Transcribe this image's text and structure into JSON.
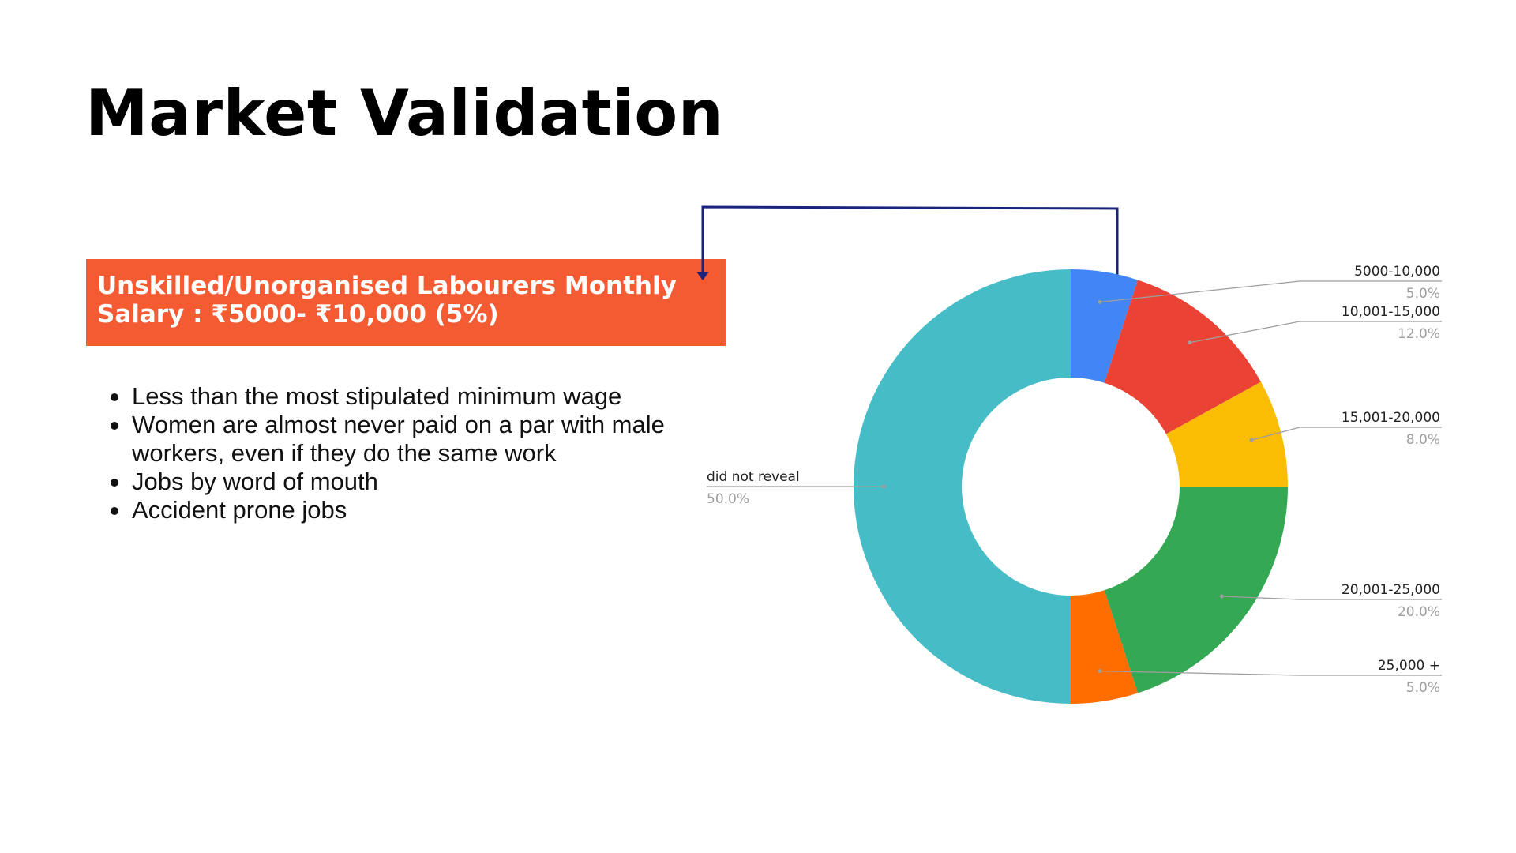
{
  "slide": {
    "title": "Market Validation",
    "highlight_box": {
      "text": "Unskilled/Unorganised Labourers Monthly\nSalary : ₹5000- ₹10,000 (5%)",
      "background": "#F45B32",
      "text_color": "#FFFFFF"
    },
    "bullets": [
      "Less than the most stipulated minimum wage",
      "Women are almost never paid on a par with male workers, even if they do the same work",
      "Jobs by word of mouth",
      "Accident prone jobs"
    ],
    "connector_color": "#1A237E"
  },
  "chart_data": {
    "type": "pie",
    "donut": true,
    "title": "",
    "legend": "none",
    "slices": [
      {
        "label": "5000-10,000",
        "value": 5.0,
        "percent_label": "5.0%",
        "color": "#4285F4"
      },
      {
        "label": "10,001-15,000",
        "value": 12.0,
        "percent_label": "12.0%",
        "color": "#EA4335"
      },
      {
        "label": "15,001-20,000",
        "value": 8.0,
        "percent_label": "8.0%",
        "color": "#FBBC04"
      },
      {
        "label": "20,001-25,000",
        "value": 20.0,
        "percent_label": "20.0%",
        "color": "#34A853"
      },
      {
        "label": "25,000 +",
        "value": 5.0,
        "percent_label": "5.0%",
        "color": "#FF6D01"
      },
      {
        "label": "did not reveal",
        "value": 50.0,
        "percent_label": "50.0%",
        "color": "#46BDC6"
      }
    ]
  }
}
